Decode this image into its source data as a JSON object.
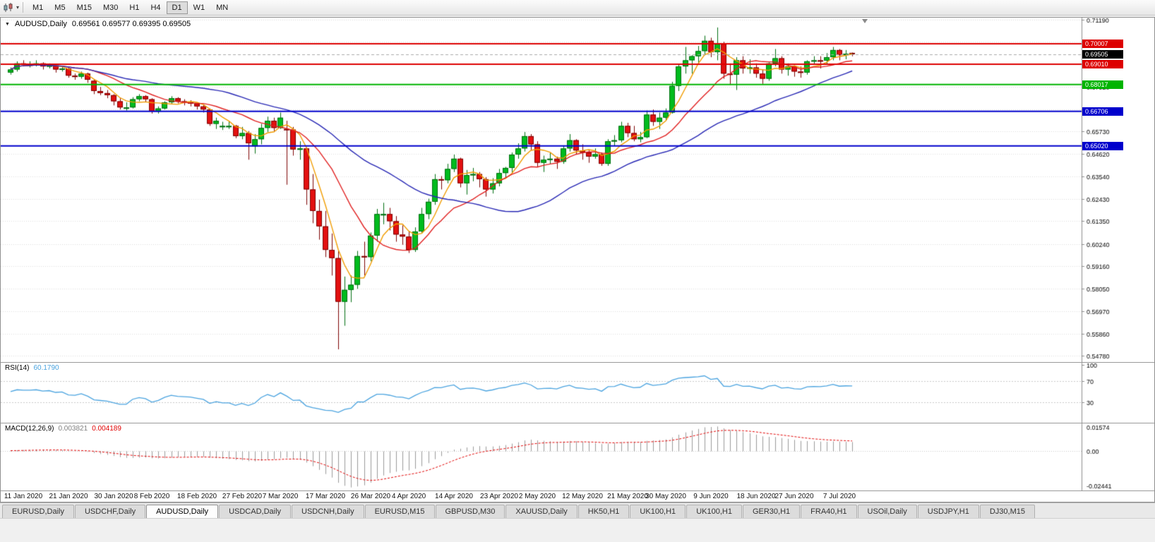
{
  "icons": {
    "chart_menu": "▼",
    "toolbar_dropdown": "▾"
  },
  "toolbar": {
    "timeframes": [
      "M1",
      "M5",
      "M15",
      "M30",
      "H1",
      "H4",
      "D1",
      "W1",
      "MN"
    ],
    "active_timeframe": "D1"
  },
  "chart_window": {
    "title_symbol": "AUDUSD,Daily",
    "title_ohlc": "0.69561 0.69577 0.69395 0.69505"
  },
  "chart_data": {
    "type": "candlestick",
    "symbol": "AUDUSD",
    "period": "Daily",
    "price_axis": {
      "max": 0.7128,
      "min": 0.5448,
      "ticks": [
        "0.71190",
        "0.70100",
        "0.69010",
        "0.67920",
        "0.66810",
        "0.65730",
        "0.64620",
        "0.63540",
        "0.62430",
        "0.61350",
        "0.60240",
        "0.59160",
        "0.58050",
        "0.56970",
        "0.55860",
        "0.54780"
      ]
    },
    "date_labels": [
      {
        "text": "11 Jan 2020",
        "bar": 2
      },
      {
        "text": "21 Jan 2020",
        "bar": 9
      },
      {
        "text": "30 Jan 2020",
        "bar": 16
      },
      {
        "text": "8 Feb 2020",
        "bar": 22
      },
      {
        "text": "18 Feb 2020",
        "bar": 29
      },
      {
        "text": "27 Feb 2020",
        "bar": 36
      },
      {
        "text": "7 Mar 2020",
        "bar": 42
      },
      {
        "text": "17 Mar 2020",
        "bar": 49
      },
      {
        "text": "26 Mar 2020",
        "bar": 56
      },
      {
        "text": "4 Apr 2020",
        "bar": 62
      },
      {
        "text": "14 Apr 2020",
        "bar": 69
      },
      {
        "text": "23 Apr 2020",
        "bar": 76
      },
      {
        "text": "2 May 2020",
        "bar": 82
      },
      {
        "text": "12 May 2020",
        "bar": 89
      },
      {
        "text": "21 May 2020",
        "bar": 96
      },
      {
        "text": "30 May 2020",
        "bar": 102
      },
      {
        "text": "9 Jun 2020",
        "bar": 109
      },
      {
        "text": "18 Jun 2020",
        "bar": 116
      },
      {
        "text": "27 Jun 2020",
        "bar": 122
      },
      {
        "text": "7 Jul 2020",
        "bar": 129
      }
    ],
    "candles": [
      [
        0.686,
        0.6885,
        0.685,
        0.6875
      ],
      [
        0.6875,
        0.6915,
        0.6865,
        0.6905
      ],
      [
        0.6905,
        0.692,
        0.689,
        0.69
      ],
      [
        0.69,
        0.6915,
        0.6885,
        0.69
      ],
      [
        0.69,
        0.692,
        0.689,
        0.6905
      ],
      [
        0.6905,
        0.691,
        0.6875,
        0.689
      ],
      [
        0.689,
        0.6905,
        0.688,
        0.6895
      ],
      [
        0.6895,
        0.69,
        0.686,
        0.6875
      ],
      [
        0.6875,
        0.689,
        0.6865,
        0.688
      ],
      [
        0.688,
        0.6885,
        0.6835,
        0.6845
      ],
      [
        0.6845,
        0.6855,
        0.6825,
        0.684
      ],
      [
        0.684,
        0.6865,
        0.683,
        0.6855
      ],
      [
        0.6855,
        0.686,
        0.681,
        0.6825
      ],
      [
        0.682,
        0.6825,
        0.6755,
        0.677
      ],
      [
        0.677,
        0.679,
        0.675,
        0.676
      ],
      [
        0.676,
        0.6775,
        0.6735,
        0.675
      ],
      [
        0.675,
        0.6755,
        0.67,
        0.672
      ],
      [
        0.672,
        0.6735,
        0.668,
        0.669
      ],
      [
        0.669,
        0.6715,
        0.6675,
        0.669
      ],
      [
        0.669,
        0.674,
        0.6685,
        0.673
      ],
      [
        0.673,
        0.6755,
        0.672,
        0.6745
      ],
      [
        0.6745,
        0.675,
        0.6715,
        0.673
      ],
      [
        0.673,
        0.6735,
        0.666,
        0.667
      ],
      [
        0.667,
        0.6695,
        0.666,
        0.6685
      ],
      [
        0.6685,
        0.672,
        0.668,
        0.6715
      ],
      [
        0.6715,
        0.6745,
        0.6705,
        0.6735
      ],
      [
        0.6735,
        0.674,
        0.671,
        0.672
      ],
      [
        0.672,
        0.673,
        0.67,
        0.6715
      ],
      [
        0.6715,
        0.6725,
        0.6695,
        0.671
      ],
      [
        0.671,
        0.6715,
        0.668,
        0.6695
      ],
      [
        0.6695,
        0.6705,
        0.6665,
        0.668
      ],
      [
        0.668,
        0.6685,
        0.66,
        0.661
      ],
      [
        0.661,
        0.664,
        0.6585,
        0.6625
      ],
      [
        0.66,
        0.662,
        0.658,
        0.66
      ],
      [
        0.66,
        0.6625,
        0.6585,
        0.66
      ],
      [
        0.66,
        0.6605,
        0.654,
        0.655
      ],
      [
        0.655,
        0.6595,
        0.6535,
        0.6565
      ],
      [
        0.6565,
        0.6575,
        0.6435,
        0.6515
      ],
      [
        0.65,
        0.656,
        0.6465,
        0.6535
      ],
      [
        0.6535,
        0.661,
        0.651,
        0.659
      ],
      [
        0.659,
        0.6645,
        0.657,
        0.6625
      ],
      [
        0.6625,
        0.664,
        0.657,
        0.659
      ],
      [
        0.659,
        0.6665,
        0.6585,
        0.664
      ],
      [
        0.6585,
        0.6625,
        0.6313,
        0.6582
      ],
      [
        0.6582,
        0.6595,
        0.6455,
        0.6485
      ],
      [
        0.6485,
        0.6525,
        0.6435,
        0.649
      ],
      [
        0.649,
        0.6495,
        0.6215,
        0.629
      ],
      [
        0.629,
        0.6365,
        0.6125,
        0.6185
      ],
      [
        0.6185,
        0.624,
        0.6045,
        0.611
      ],
      [
        0.611,
        0.6185,
        0.596,
        0.5995
      ],
      [
        0.5995,
        0.6075,
        0.587,
        0.5955
      ],
      [
        0.5955,
        0.599,
        0.551,
        0.5742
      ],
      [
        0.5742,
        0.5865,
        0.5625,
        0.58
      ],
      [
        0.58,
        0.587,
        0.574,
        0.5825
      ],
      [
        0.5825,
        0.599,
        0.5805,
        0.5965
      ],
      [
        0.5965,
        0.6035,
        0.587,
        0.596
      ],
      [
        0.596,
        0.608,
        0.594,
        0.6065
      ],
      [
        0.6065,
        0.6195,
        0.6035,
        0.617
      ],
      [
        0.617,
        0.6225,
        0.612,
        0.617
      ],
      [
        0.617,
        0.62,
        0.609,
        0.6135
      ],
      [
        0.6135,
        0.616,
        0.6035,
        0.607
      ],
      [
        0.607,
        0.6115,
        0.602,
        0.606
      ],
      [
        0.606,
        0.6085,
        0.598,
        0.5995
      ],
      [
        0.5995,
        0.6105,
        0.5985,
        0.6085
      ],
      [
        0.6085,
        0.62,
        0.6075,
        0.617
      ],
      [
        0.617,
        0.6245,
        0.6145,
        0.623
      ],
      [
        0.623,
        0.6365,
        0.6215,
        0.634
      ],
      [
        0.634,
        0.6355,
        0.629,
        0.6335
      ],
      [
        0.6335,
        0.6415,
        0.632,
        0.639
      ],
      [
        0.639,
        0.646,
        0.6375,
        0.644
      ],
      [
        0.644,
        0.6445,
        0.63,
        0.632
      ],
      [
        0.632,
        0.6385,
        0.6265,
        0.636
      ],
      [
        0.636,
        0.6395,
        0.633,
        0.6365
      ],
      [
        0.6365,
        0.6375,
        0.63,
        0.634
      ],
      [
        0.634,
        0.635,
        0.6255,
        0.629
      ],
      [
        0.629,
        0.6345,
        0.627,
        0.632
      ],
      [
        0.632,
        0.639,
        0.6305,
        0.637
      ],
      [
        0.637,
        0.64,
        0.635,
        0.6395
      ],
      [
        0.6395,
        0.647,
        0.637,
        0.646
      ],
      [
        0.646,
        0.6515,
        0.644,
        0.649
      ],
      [
        0.649,
        0.657,
        0.6475,
        0.655
      ],
      [
        0.655,
        0.656,
        0.648,
        0.651
      ],
      [
        0.651,
        0.6525,
        0.64,
        0.642
      ],
      [
        0.642,
        0.6455,
        0.6375,
        0.6435
      ],
      [
        0.6435,
        0.647,
        0.6415,
        0.644
      ],
      [
        0.644,
        0.645,
        0.639,
        0.6425
      ],
      [
        0.6425,
        0.6505,
        0.6415,
        0.649
      ],
      [
        0.649,
        0.656,
        0.6475,
        0.653
      ],
      [
        0.653,
        0.6535,
        0.646,
        0.648
      ],
      [
        0.648,
        0.651,
        0.6435,
        0.647
      ],
      [
        0.647,
        0.648,
        0.642,
        0.645
      ],
      [
        0.645,
        0.649,
        0.644,
        0.6462
      ],
      [
        0.6462,
        0.647,
        0.6405,
        0.6415
      ],
      [
        0.6415,
        0.6535,
        0.6405,
        0.6525
      ],
      [
        0.6525,
        0.6555,
        0.6505,
        0.653
      ],
      [
        0.653,
        0.662,
        0.652,
        0.66
      ],
      [
        0.66,
        0.6615,
        0.6545,
        0.6565
      ],
      [
        0.6565,
        0.66,
        0.6525,
        0.6535
      ],
      [
        0.6535,
        0.657,
        0.652,
        0.6545
      ],
      [
        0.6545,
        0.6675,
        0.654,
        0.6655
      ],
      [
        0.6655,
        0.668,
        0.66,
        0.662
      ],
      [
        0.662,
        0.6665,
        0.6585,
        0.664
      ],
      [
        0.664,
        0.6685,
        0.6625,
        0.6665
      ],
      [
        0.6665,
        0.6815,
        0.666,
        0.6795
      ],
      [
        0.6795,
        0.69,
        0.677,
        0.689
      ],
      [
        0.689,
        0.6985,
        0.6855,
        0.692
      ],
      [
        0.692,
        0.6945,
        0.6855,
        0.694
      ],
      [
        0.694,
        0.699,
        0.6905,
        0.6965
      ],
      [
        0.6965,
        0.704,
        0.6945,
        0.7015
      ],
      [
        0.7015,
        0.703,
        0.6935,
        0.696
      ],
      [
        0.696,
        0.708,
        0.692,
        0.7
      ],
      [
        0.7,
        0.701,
        0.683,
        0.6855
      ],
      [
        0.6855,
        0.6905,
        0.68,
        0.685
      ],
      [
        0.685,
        0.6935,
        0.6775,
        0.692
      ],
      [
        0.692,
        0.694,
        0.6855,
        0.688
      ],
      [
        0.688,
        0.6925,
        0.6855,
        0.6885
      ],
      [
        0.6885,
        0.6905,
        0.6835,
        0.6855
      ],
      [
        0.6855,
        0.6875,
        0.6805,
        0.683
      ],
      [
        0.683,
        0.691,
        0.682,
        0.6905
      ],
      [
        0.6905,
        0.6975,
        0.689,
        0.693
      ],
      [
        0.693,
        0.694,
        0.6855,
        0.6875
      ],
      [
        0.6875,
        0.6905,
        0.6845,
        0.689
      ],
      [
        0.689,
        0.6895,
        0.684,
        0.6865
      ],
      [
        0.6865,
        0.689,
        0.6835,
        0.686
      ],
      [
        0.686,
        0.692,
        0.685,
        0.6915
      ],
      [
        0.6915,
        0.694,
        0.69,
        0.692
      ],
      [
        0.692,
        0.694,
        0.688,
        0.6918
      ],
      [
        0.6918,
        0.6955,
        0.69,
        0.6935
      ],
      [
        0.6935,
        0.6985,
        0.692,
        0.697
      ],
      [
        0.697,
        0.6975,
        0.692,
        0.6945
      ],
      [
        0.6945,
        0.697,
        0.6925,
        0.6952
      ],
      [
        0.69561,
        0.69577,
        0.69395,
        0.69505
      ]
    ],
    "colors": {
      "up": "#00bc1e",
      "up_border": "#006e10",
      "down": "#e31010",
      "down_border": "#7d0202",
      "grid": "#dcdcdc",
      "axis_line": "#8c8c8c",
      "bid_line": "#a8a8a8"
    },
    "moving_averages": [
      {
        "period": 5,
        "color": "#f09c00"
      },
      {
        "period": 13,
        "color": "#e02020"
      },
      {
        "period": 34,
        "color": "#2828b4"
      }
    ],
    "hlines": [
      {
        "price": 0.70007,
        "label": "0.70007",
        "color": "#dd0000"
      },
      {
        "price": 0.6901,
        "label": "0.69010",
        "color": "#dd0000"
      },
      {
        "price": 0.68017,
        "label": "0.68017",
        "color": "#00b400"
      },
      {
        "price": 0.66706,
        "label": "0.66706",
        "color": "#0000cc"
      },
      {
        "price": 0.6502,
        "label": "0.65020",
        "color": "#0000cc"
      }
    ],
    "bid_tag": {
      "price": 0.69505,
      "label": "0.69505",
      "color": "#000000"
    },
    "rsi": {
      "name": "RSI(14)",
      "value": "60.1790",
      "period": 14,
      "color": "#4aa3df",
      "levels": [
        "100",
        "70",
        "30"
      ],
      "level_values": [
        100,
        70,
        30
      ]
    },
    "macd": {
      "name": "MACD(12,26,9)",
      "values": [
        "0.003821",
        "0.004189"
      ],
      "fast": 12,
      "slow": 26,
      "signal": 9,
      "hist_color": "#9a9a9a",
      "signal_color": "#e00000",
      "axis_labels": [
        "0.01574",
        "0.00",
        "-0.02441"
      ]
    }
  },
  "tabs": {
    "active_index": 2,
    "items": [
      "EURUSD,Daily",
      "USDCHF,Daily",
      "AUDUSD,Daily",
      "USDCAD,Daily",
      "USDCNH,Daily",
      "EURUSD,M15",
      "GBPUSD,M30",
      "XAUUSD,Daily",
      "HK50,H1",
      "UK100,H1",
      "UK100,H1",
      "GER30,H1",
      "FRA40,H1",
      "USOil,Daily",
      "USDJPY,H1",
      "DJ30,M15"
    ]
  }
}
